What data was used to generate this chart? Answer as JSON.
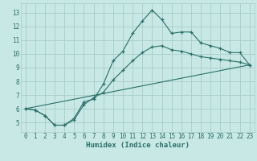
{
  "xlabel": "Humidex (Indice chaleur)",
  "bg_color": "#c8e8e5",
  "line_color": "#2a6f6a",
  "grid_color": "#a8ccca",
  "xlim": [
    -0.5,
    23.5
  ],
  "ylim": [
    4.3,
    13.7
  ],
  "xticks": [
    0,
    1,
    2,
    3,
    4,
    5,
    6,
    7,
    8,
    9,
    10,
    11,
    12,
    13,
    14,
    15,
    16,
    17,
    18,
    19,
    20,
    21,
    22,
    23
  ],
  "yticks": [
    5,
    6,
    7,
    8,
    9,
    10,
    11,
    12,
    13
  ],
  "line1_x": [
    0,
    1,
    2,
    3,
    4,
    5,
    6,
    7,
    8,
    9,
    10,
    11,
    12,
    13,
    14,
    15,
    16,
    17,
    18,
    19,
    20,
    21,
    22,
    23
  ],
  "line1_y": [
    6.0,
    5.9,
    5.5,
    4.8,
    4.8,
    5.3,
    6.5,
    6.7,
    7.8,
    9.5,
    10.2,
    11.5,
    12.4,
    13.2,
    12.5,
    11.5,
    11.6,
    11.6,
    10.8,
    10.6,
    10.4,
    10.1,
    10.1,
    9.2
  ],
  "line2_x": [
    0,
    1,
    2,
    3,
    4,
    5,
    6,
    7,
    8,
    9,
    10,
    11,
    12,
    13,
    14,
    15,
    16,
    17,
    18,
    19,
    20,
    21,
    22,
    23
  ],
  "line2_y": [
    6.0,
    5.9,
    5.5,
    4.8,
    4.8,
    5.2,
    6.3,
    6.8,
    7.2,
    8.1,
    8.8,
    9.5,
    10.1,
    10.5,
    10.6,
    10.3,
    10.2,
    10.0,
    9.8,
    9.7,
    9.6,
    9.5,
    9.4,
    9.2
  ],
  "line3_x": [
    0,
    23
  ],
  "line3_y": [
    6.0,
    9.2
  ]
}
